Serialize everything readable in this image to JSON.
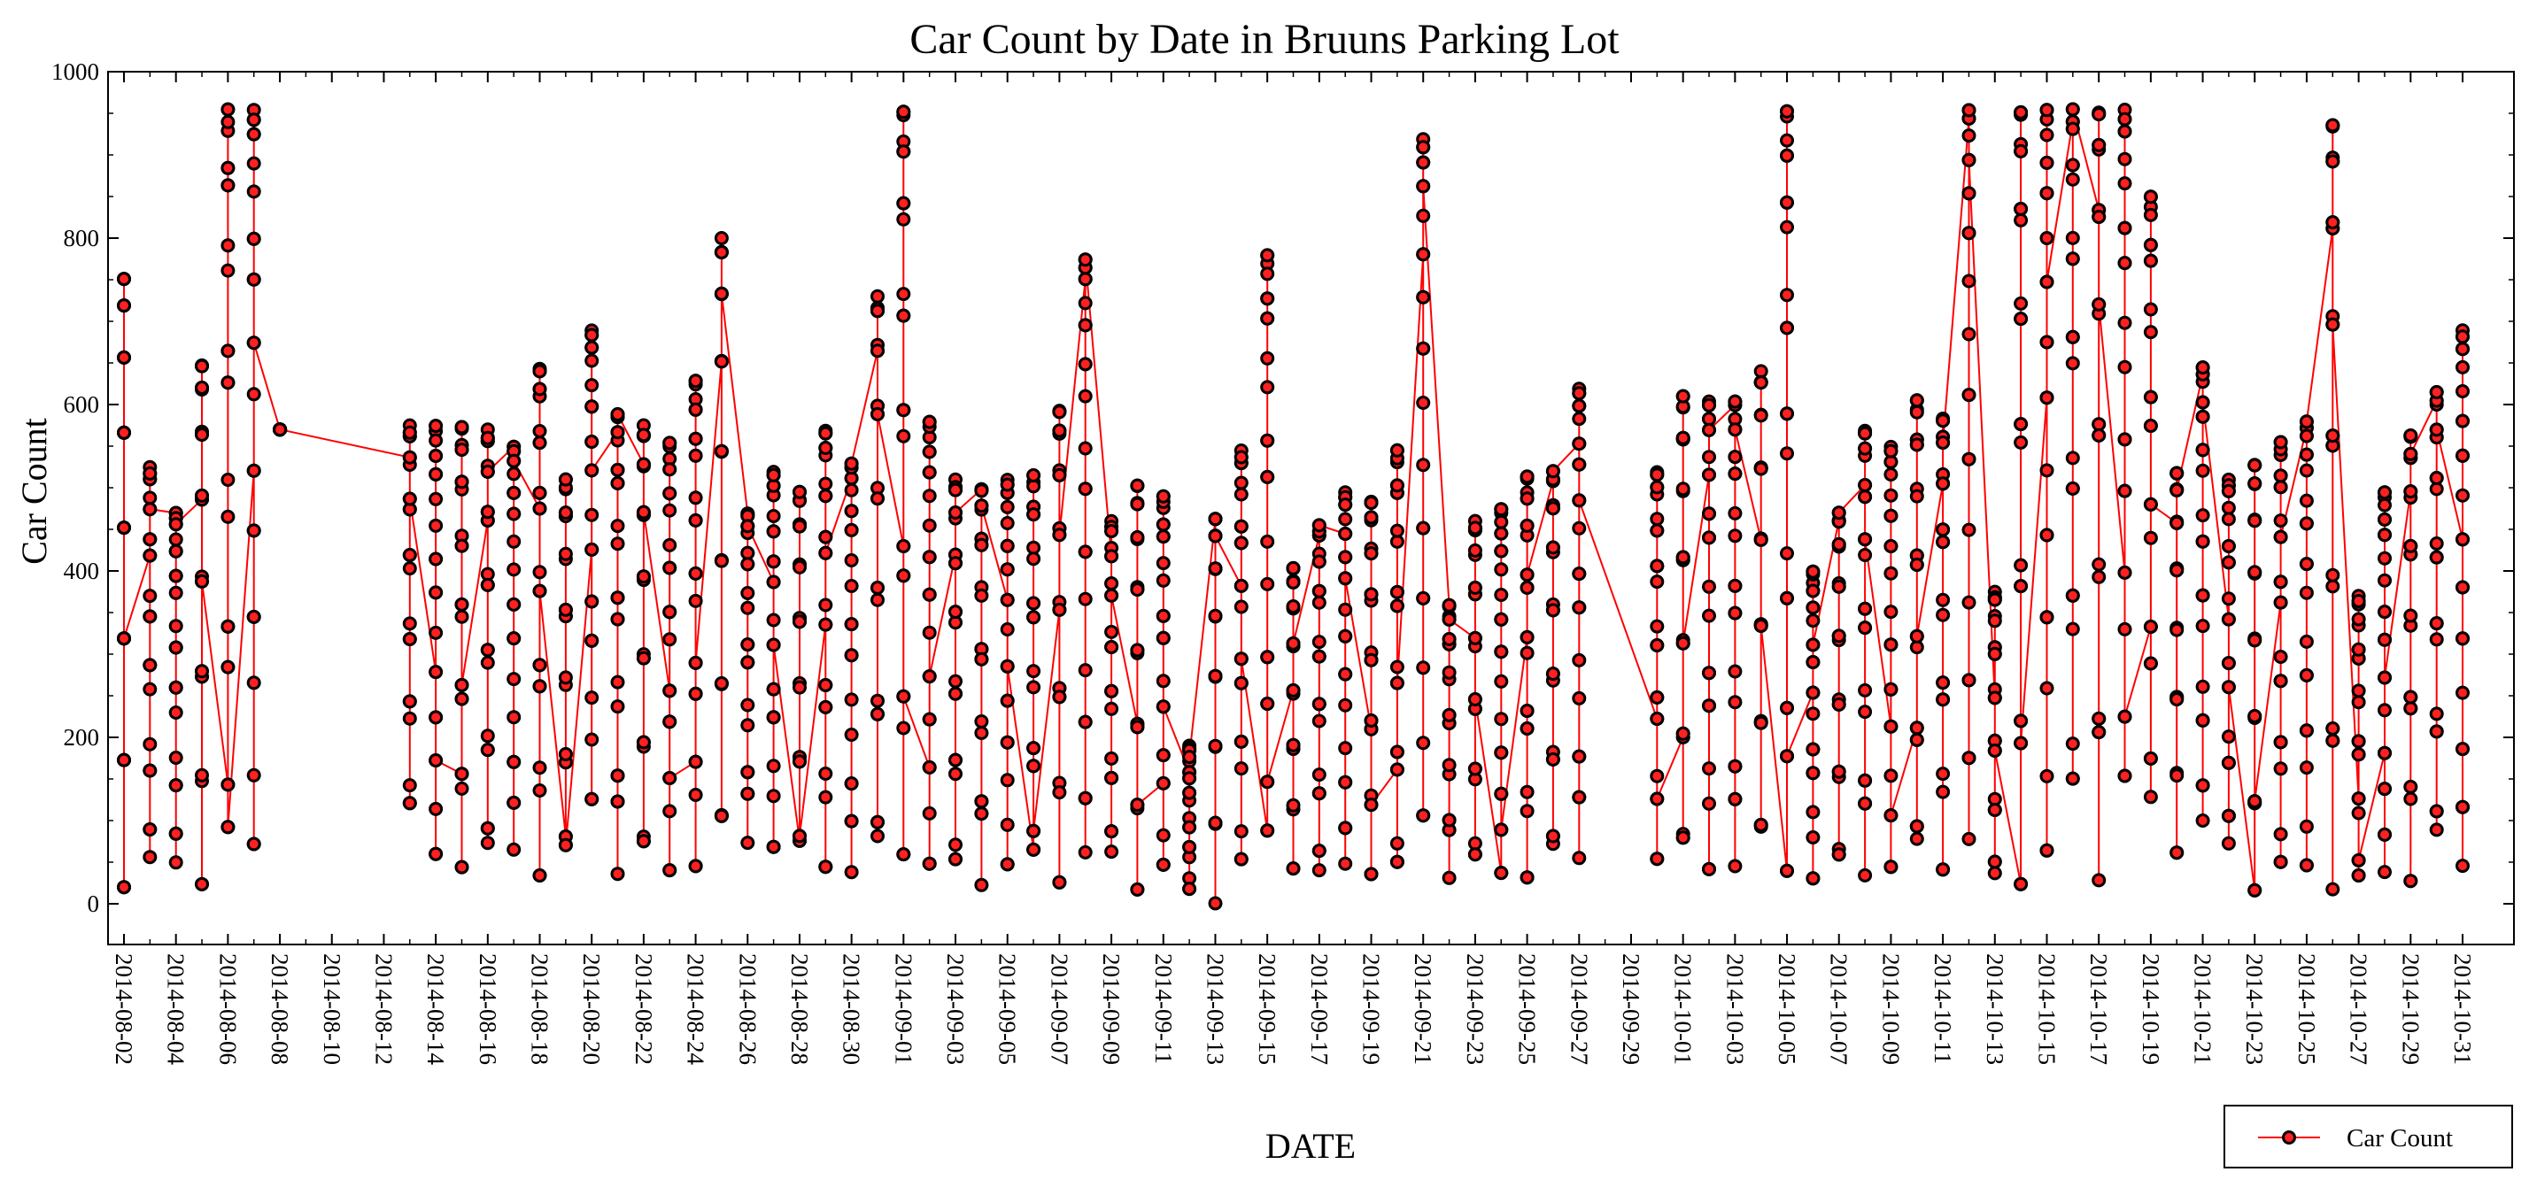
{
  "chart_data": {
    "type": "line",
    "title": "Car Count by Date in Bruuns Parking Lot",
    "xlabel": "DATE",
    "ylabel": "Car Count",
    "ylim": [
      0,
      1000
    ],
    "yticks": [
      0,
      200,
      400,
      600,
      800,
      1000
    ],
    "xlim": [
      "2014-08-02",
      "2014-10-31"
    ],
    "xticks": [
      "2014-08-02",
      "2014-08-04",
      "2014-08-06",
      "2014-08-08",
      "2014-08-10",
      "2014-08-12",
      "2014-08-14",
      "2014-08-16",
      "2014-08-18",
      "2014-08-20",
      "2014-08-22",
      "2014-08-24",
      "2014-08-26",
      "2014-08-28",
      "2014-08-30",
      "2014-09-01",
      "2014-09-03",
      "2014-09-05",
      "2014-09-07",
      "2014-09-09",
      "2014-09-11",
      "2014-09-13",
      "2014-09-15",
      "2014-09-17",
      "2014-09-19",
      "2014-09-21",
      "2014-09-23",
      "2014-09-25",
      "2014-09-27",
      "2014-09-29",
      "2014-10-01",
      "2014-10-03",
      "2014-10-05",
      "2014-10-07",
      "2014-10-09",
      "2014-10-11",
      "2014-10-13",
      "2014-10-15",
      "2014-10-17",
      "2014-10-19",
      "2014-10-21",
      "2014-10-23",
      "2014-10-25",
      "2014-10-27",
      "2014-10-29",
      "2014-10-31"
    ],
    "grid": false,
    "legend_position": "bottom-right",
    "series": [
      {
        "name": "Car Count",
        "color": "#ff0000",
        "marker": "circle",
        "marker_fill": "#ff2020",
        "marker_edge": "#000000",
        "daily": [
          [
            "2014-08-02",
            20,
            755
          ],
          [
            "2014-08-03",
            20,
            525
          ],
          [
            "2014-08-04",
            20,
            470
          ],
          [
            "2014-08-05",
            20,
            650
          ],
          [
            "2014-08-06",
            20,
            955
          ],
          [
            "2014-08-07",
            15,
            955
          ],
          [
            "2014-08-08",
            570,
            570
          ],
          [
            "2014-08-13",
            80,
            575
          ],
          [
            "2014-08-14",
            30,
            575
          ],
          [
            "2014-08-15",
            35,
            575
          ],
          [
            "2014-08-16",
            25,
            570
          ],
          [
            "2014-08-17",
            40,
            550
          ],
          [
            "2014-08-18",
            20,
            645
          ],
          [
            "2014-08-19",
            25,
            510
          ],
          [
            "2014-08-20",
            100,
            690
          ],
          [
            "2014-08-21",
            20,
            590
          ],
          [
            "2014-08-22",
            20,
            575
          ],
          [
            "2014-08-23",
            20,
            555
          ],
          [
            "2014-08-24",
            25,
            630
          ],
          [
            "2014-08-25",
            25,
            800
          ],
          [
            "2014-08-26",
            60,
            470
          ],
          [
            "2014-08-27",
            50,
            520
          ],
          [
            "2014-08-28",
            30,
            495
          ],
          [
            "2014-08-29",
            30,
            570
          ],
          [
            "2014-08-30",
            15,
            530
          ],
          [
            "2014-08-31",
            15,
            730
          ],
          [
            "2014-09-01",
            40,
            955
          ],
          [
            "2014-09-02",
            20,
            580
          ],
          [
            "2014-09-03",
            10,
            510
          ],
          [
            "2014-09-04",
            15,
            500
          ],
          [
            "2014-09-05",
            20,
            510
          ],
          [
            "2014-09-06",
            25,
            515
          ],
          [
            "2014-09-07",
            20,
            595
          ],
          [
            "2014-09-08",
            15,
            775
          ],
          [
            "2014-09-09",
            30,
            460
          ],
          [
            "2014-09-10",
            15,
            505
          ],
          [
            "2014-09-11",
            15,
            490
          ],
          [
            "2014-09-12",
            5,
            190
          ],
          [
            "2014-09-13",
            0,
            465
          ],
          [
            "2014-09-14",
            15,
            545
          ],
          [
            "2014-09-15",
            40,
            780
          ],
          [
            "2014-09-16",
            40,
            405
          ],
          [
            "2014-09-17",
            5,
            455
          ],
          [
            "2014-09-18",
            20,
            495
          ],
          [
            "2014-09-19",
            30,
            485
          ],
          [
            "2014-09-20",
            5,
            545
          ],
          [
            "2014-09-21",
            60,
            920
          ],
          [
            "2014-09-22",
            25,
            360
          ],
          [
            "2014-09-23",
            20,
            460
          ],
          [
            "2014-09-24",
            15,
            475
          ],
          [
            "2014-09-25",
            20,
            515
          ],
          [
            "2014-09-26",
            25,
            520
          ],
          [
            "2014-09-27",
            30,
            620
          ],
          [
            "2014-09-30",
            40,
            520
          ],
          [
            "2014-10-01",
            20,
            610
          ],
          [
            "2014-10-02",
            20,
            605
          ],
          [
            "2014-10-03",
            25,
            605
          ],
          [
            "2014-10-04",
            30,
            640
          ],
          [
            "2014-10-05",
            10,
            955
          ],
          [
            "2014-10-06",
            15,
            400
          ],
          [
            "2014-10-07",
            15,
            470
          ],
          [
            "2014-10-08",
            20,
            570
          ],
          [
            "2014-10-09",
            20,
            550
          ],
          [
            "2014-10-10",
            25,
            605
          ],
          [
            "2014-10-11",
            30,
            585
          ],
          [
            "2014-10-12",
            30,
            955
          ],
          [
            "2014-10-13",
            5,
            375
          ],
          [
            "2014-10-14",
            10,
            955
          ],
          [
            "2014-10-15",
            10,
            955
          ],
          [
            "2014-10-16",
            80,
            955
          ],
          [
            "2014-10-17",
            20,
            955
          ],
          [
            "2014-10-18",
            100,
            955
          ],
          [
            "2014-10-19",
            70,
            850
          ],
          [
            "2014-10-20",
            60,
            520
          ],
          [
            "2014-10-21",
            60,
            645
          ],
          [
            "2014-10-22",
            40,
            510
          ],
          [
            "2014-10-23",
            15,
            530
          ],
          [
            "2014-10-24",
            10,
            555
          ],
          [
            "2014-10-25",
            10,
            580
          ],
          [
            "2014-10-26",
            10,
            940
          ],
          [
            "2014-10-27",
            5,
            370
          ],
          [
            "2014-10-28",
            10,
            495
          ],
          [
            "2014-10-29",
            20,
            565
          ],
          [
            "2014-10-30",
            40,
            615
          ],
          [
            "2014-10-31",
            10,
            690
          ]
        ]
      }
    ]
  }
}
